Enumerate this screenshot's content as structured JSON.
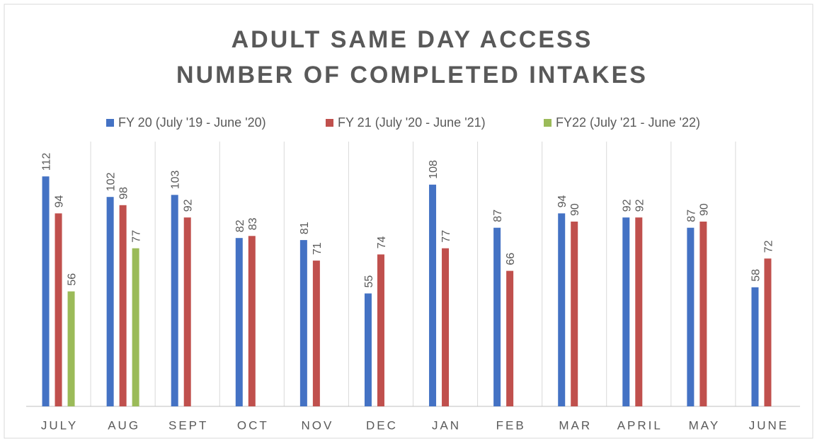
{
  "chart_data": {
    "type": "bar",
    "title": [
      "ADULT SAME DAY ACCESS",
      "NUMBER OF COMPLETED INTAKES"
    ],
    "categories": [
      "JULY",
      "AUG",
      "SEPT",
      "OCT",
      "NOV",
      "DEC",
      "JAN",
      "FEB",
      "MAR",
      "APRIL",
      "MAY",
      "JUNE"
    ],
    "series": [
      {
        "name": "FY 20 (July '19 - June '20)",
        "color": "#4472c4",
        "values": [
          112,
          102,
          103,
          82,
          81,
          55,
          108,
          87,
          94,
          92,
          87,
          58
        ]
      },
      {
        "name": "FY 21 (July '20 - June '21)",
        "color": "#c0504d",
        "values": [
          94,
          98,
          92,
          83,
          71,
          74,
          77,
          66,
          90,
          92,
          90,
          72
        ]
      },
      {
        "name": "FY22 (July '21 - June '22)",
        "color": "#9bbb59",
        "values": [
          56,
          77,
          null,
          null,
          null,
          null,
          null,
          null,
          null,
          null,
          null,
          null
        ]
      }
    ],
    "ylim": [
      0,
      120
    ],
    "legend": "top"
  }
}
